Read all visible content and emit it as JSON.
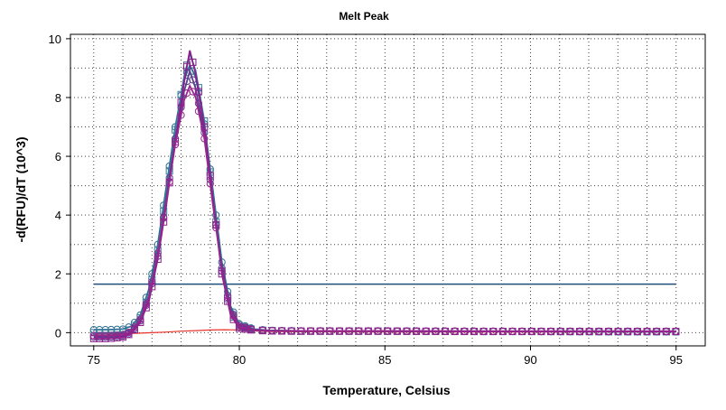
{
  "chart_data": {
    "type": "scatter",
    "title": "Melt Peak",
    "xlabel": "Temperature, Celsius",
    "ylabel": "-d(RFU)/dT (10^3)",
    "xlim": [
      74.2,
      96.0
    ],
    "ylim": [
      -0.45,
      10.15
    ],
    "x_ticks": [
      "75",
      "80",
      "85",
      "90",
      "95"
    ],
    "y_ticks": [
      "0",
      "2",
      "4",
      "6",
      "8",
      "10"
    ],
    "grid": true,
    "threshold": {
      "y": 1.65,
      "x_range": [
        75,
        95
      ],
      "color": "#1f4e79"
    },
    "negative_control": {
      "color": "#e8352b",
      "points": [
        [
          75,
          -0.05
        ],
        [
          76,
          -0.04
        ],
        [
          76.5,
          -0.02
        ],
        [
          77,
          0.0
        ],
        [
          77.5,
          0.02
        ],
        [
          78,
          0.05
        ],
        [
          78.5,
          0.07
        ],
        [
          79,
          0.09
        ],
        [
          79.5,
          0.1
        ],
        [
          80,
          0.09
        ],
        [
          80.5,
          0.06
        ],
        [
          81,
          0.04
        ],
        [
          82,
          0.03
        ],
        [
          85,
          0.02
        ],
        [
          90,
          0.02
        ],
        [
          95,
          0.02
        ]
      ]
    },
    "series": [
      {
        "color": "#2b6e91",
        "marker": "circle",
        "points": [
          [
            75,
            0.1
          ],
          [
            75.5,
            0.1
          ],
          [
            76,
            0.12
          ],
          [
            76.3,
            0.22
          ],
          [
            76.6,
            0.6
          ],
          [
            76.9,
            1.5
          ],
          [
            77.2,
            3.0
          ],
          [
            77.5,
            5.0
          ],
          [
            77.8,
            7.0
          ],
          [
            78.1,
            8.6
          ],
          [
            78.3,
            9.1
          ],
          [
            78.5,
            8.7
          ],
          [
            78.8,
            7.1
          ],
          [
            79.1,
            4.8
          ],
          [
            79.4,
            2.4
          ],
          [
            79.7,
            0.9
          ],
          [
            80,
            0.3
          ],
          [
            80.5,
            0.12
          ],
          [
            81,
            0.08
          ],
          [
            82,
            0.06
          ],
          [
            85,
            0.05
          ],
          [
            88,
            0.04
          ],
          [
            90,
            0.04
          ],
          [
            93,
            0.03
          ],
          [
            95,
            0.03
          ]
        ]
      },
      {
        "color": "#3a7a9c",
        "marker": "square",
        "points": [
          [
            75,
            0.0
          ],
          [
            75.5,
            0.0
          ],
          [
            76,
            0.02
          ],
          [
            76.3,
            0.12
          ],
          [
            76.6,
            0.5
          ],
          [
            76.9,
            1.3
          ],
          [
            77.2,
            2.8
          ],
          [
            77.5,
            4.8
          ],
          [
            77.8,
            6.9
          ],
          [
            78.1,
            8.7
          ],
          [
            78.3,
            9.5
          ],
          [
            78.5,
            8.9
          ],
          [
            78.8,
            7.2
          ],
          [
            79.1,
            4.6
          ],
          [
            79.4,
            2.1
          ],
          [
            79.7,
            0.7
          ],
          [
            80,
            0.2
          ],
          [
            80.5,
            0.1
          ],
          [
            81,
            0.07
          ],
          [
            82,
            0.05
          ],
          [
            85,
            0.05
          ],
          [
            88,
            0.04
          ],
          [
            90,
            0.04
          ],
          [
            93,
            0.03
          ],
          [
            95,
            0.03
          ]
        ]
      },
      {
        "color": "#5a3d8c",
        "marker": "circle",
        "points": [
          [
            75,
            -0.15
          ],
          [
            75.5,
            -0.15
          ],
          [
            76,
            -0.12
          ],
          [
            76.3,
            0.0
          ],
          [
            76.6,
            0.4
          ],
          [
            76.9,
            1.2
          ],
          [
            77.2,
            2.6
          ],
          [
            77.5,
            4.6
          ],
          [
            77.8,
            6.6
          ],
          [
            78.1,
            8.2
          ],
          [
            78.3,
            8.9
          ],
          [
            78.5,
            8.3
          ],
          [
            78.8,
            6.8
          ],
          [
            79.1,
            4.4
          ],
          [
            79.4,
            2.2
          ],
          [
            79.7,
            0.8
          ],
          [
            80,
            0.25
          ],
          [
            80.5,
            0.1
          ],
          [
            81,
            0.07
          ],
          [
            82,
            0.06
          ],
          [
            85,
            0.05
          ],
          [
            88,
            0.05
          ],
          [
            90,
            0.04
          ],
          [
            93,
            0.04
          ],
          [
            95,
            0.04
          ]
        ]
      },
      {
        "color": "#8a1f8c",
        "marker": "square",
        "points": [
          [
            75,
            -0.2
          ],
          [
            75.5,
            -0.2
          ],
          [
            76,
            -0.15
          ],
          [
            76.3,
            -0.02
          ],
          [
            76.6,
            0.35
          ],
          [
            76.9,
            1.1
          ],
          [
            77.2,
            2.5
          ],
          [
            77.5,
            4.4
          ],
          [
            77.8,
            6.5
          ],
          [
            78.1,
            8.5
          ],
          [
            78.3,
            9.6
          ],
          [
            78.5,
            8.8
          ],
          [
            78.8,
            7.0
          ],
          [
            79.1,
            4.5
          ],
          [
            79.4,
            2.0
          ],
          [
            79.7,
            0.6
          ],
          [
            80,
            0.15
          ],
          [
            80.5,
            0.08
          ],
          [
            81,
            0.06
          ],
          [
            82,
            0.05
          ],
          [
            85,
            0.05
          ],
          [
            88,
            0.04
          ],
          [
            90,
            0.04
          ],
          [
            93,
            0.04
          ],
          [
            95,
            0.04
          ]
        ]
      },
      {
        "color": "#97268f",
        "marker": "circle",
        "points": [
          [
            75,
            -0.1
          ],
          [
            75.5,
            -0.1
          ],
          [
            76,
            -0.08
          ],
          [
            76.3,
            0.05
          ],
          [
            76.6,
            0.45
          ],
          [
            76.9,
            1.25
          ],
          [
            77.2,
            2.7
          ],
          [
            77.5,
            4.5
          ],
          [
            77.8,
            6.4
          ],
          [
            78.1,
            7.9
          ],
          [
            78.3,
            8.4
          ],
          [
            78.5,
            8.0
          ],
          [
            78.8,
            6.6
          ],
          [
            79.1,
            4.3
          ],
          [
            79.4,
            2.1
          ],
          [
            79.7,
            0.75
          ],
          [
            80,
            0.2
          ],
          [
            80.5,
            0.1
          ],
          [
            81,
            0.07
          ],
          [
            82,
            0.06
          ],
          [
            85,
            0.06
          ],
          [
            88,
            0.05
          ],
          [
            90,
            0.05
          ],
          [
            93,
            0.05
          ],
          [
            95,
            0.05
          ]
        ]
      }
    ]
  }
}
